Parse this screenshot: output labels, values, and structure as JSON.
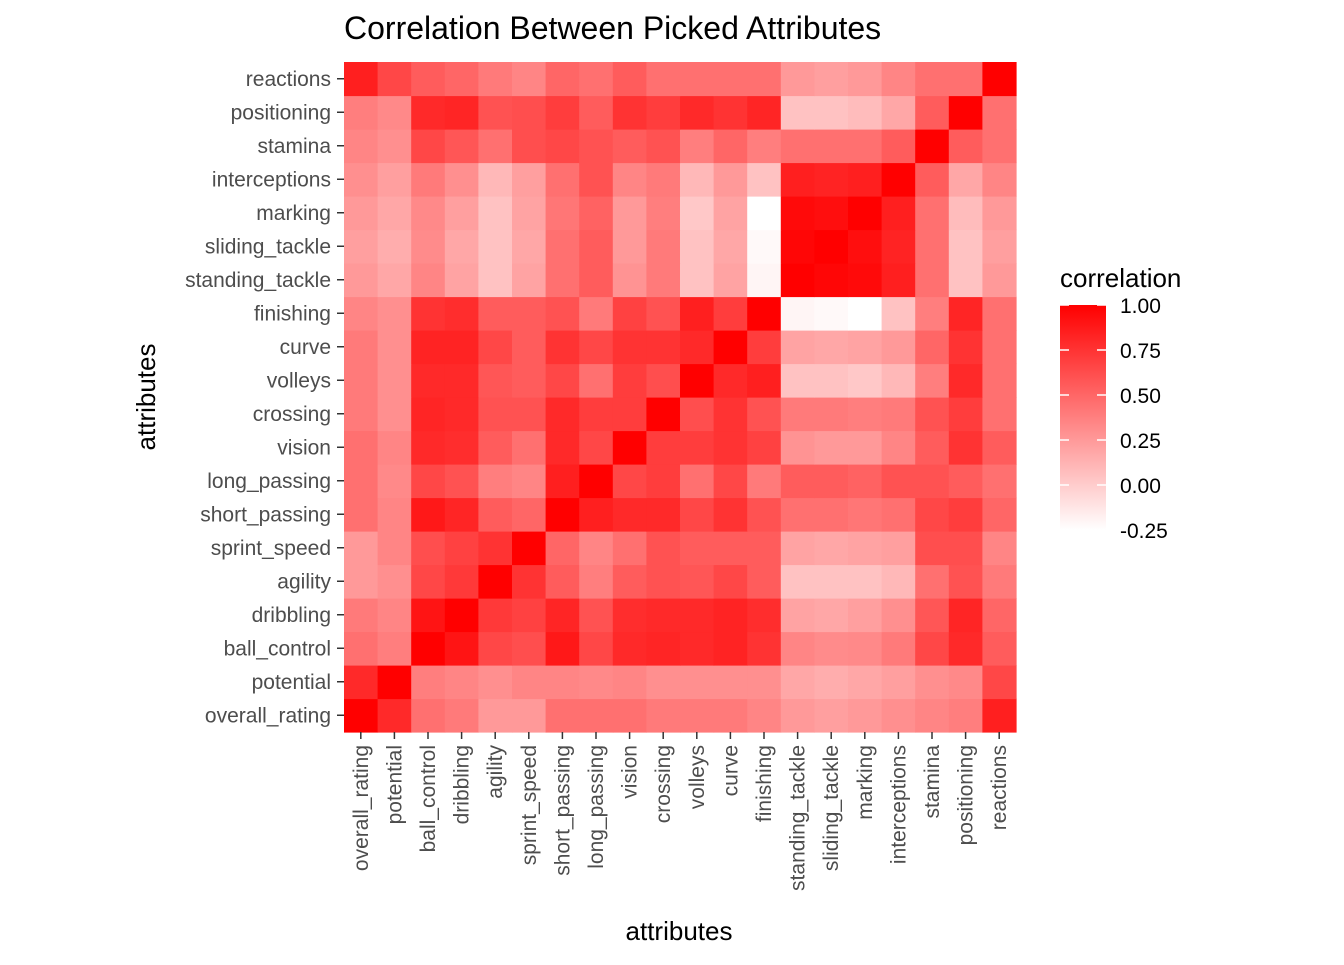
{
  "chart_data": {
    "type": "heatmap",
    "title": "Correlation Between Picked Attributes",
    "xlabel": "attributes",
    "ylabel": "attributes",
    "attributes": [
      "overall_rating",
      "potential",
      "ball_control",
      "dribbling",
      "agility",
      "sprint_speed",
      "short_passing",
      "long_passing",
      "vision",
      "crossing",
      "volleys",
      "curve",
      "finishing",
      "standing_tackle",
      "sliding_tackle",
      "marking",
      "interceptions",
      "stamina",
      "positioning",
      "reactions"
    ],
    "matrix": [
      [
        1.0,
        0.8,
        0.45,
        0.4,
        0.25,
        0.25,
        0.45,
        0.45,
        0.45,
        0.4,
        0.4,
        0.4,
        0.35,
        0.25,
        0.22,
        0.25,
        0.3,
        0.35,
        0.38,
        0.85
      ],
      [
        0.8,
        1.0,
        0.38,
        0.35,
        0.3,
        0.35,
        0.35,
        0.33,
        0.35,
        0.3,
        0.3,
        0.3,
        0.3,
        0.18,
        0.15,
        0.18,
        0.22,
        0.3,
        0.33,
        0.65
      ],
      [
        0.45,
        0.38,
        1.0,
        0.9,
        0.65,
        0.62,
        0.88,
        0.65,
        0.8,
        0.82,
        0.8,
        0.83,
        0.75,
        0.35,
        0.32,
        0.33,
        0.4,
        0.65,
        0.8,
        0.55
      ],
      [
        0.4,
        0.35,
        0.9,
        1.0,
        0.72,
        0.68,
        0.82,
        0.6,
        0.78,
        0.8,
        0.8,
        0.83,
        0.78,
        0.2,
        0.18,
        0.22,
        0.3,
        0.58,
        0.82,
        0.5
      ],
      [
        0.25,
        0.3,
        0.65,
        0.72,
        1.0,
        0.75,
        0.55,
        0.38,
        0.55,
        0.6,
        0.58,
        0.65,
        0.55,
        0.05,
        0.05,
        0.05,
        0.1,
        0.45,
        0.6,
        0.4
      ],
      [
        0.25,
        0.35,
        0.62,
        0.68,
        0.75,
        1.0,
        0.5,
        0.35,
        0.45,
        0.6,
        0.55,
        0.55,
        0.55,
        0.2,
        0.18,
        0.2,
        0.22,
        0.62,
        0.62,
        0.35
      ],
      [
        0.45,
        0.35,
        0.88,
        0.82,
        0.55,
        0.5,
        1.0,
        0.85,
        0.8,
        0.8,
        0.65,
        0.75,
        0.6,
        0.45,
        0.45,
        0.42,
        0.45,
        0.65,
        0.7,
        0.5
      ],
      [
        0.45,
        0.33,
        0.65,
        0.6,
        0.38,
        0.35,
        0.85,
        1.0,
        0.65,
        0.7,
        0.45,
        0.65,
        0.4,
        0.55,
        0.55,
        0.52,
        0.6,
        0.6,
        0.55,
        0.45
      ],
      [
        0.45,
        0.35,
        0.8,
        0.78,
        0.55,
        0.45,
        0.8,
        0.65,
        1.0,
        0.7,
        0.7,
        0.75,
        0.68,
        0.28,
        0.25,
        0.25,
        0.35,
        0.55,
        0.75,
        0.55
      ],
      [
        0.4,
        0.3,
        0.82,
        0.8,
        0.6,
        0.6,
        0.8,
        0.7,
        0.7,
        1.0,
        0.62,
        0.75,
        0.6,
        0.4,
        0.4,
        0.38,
        0.4,
        0.6,
        0.7,
        0.45
      ],
      [
        0.4,
        0.3,
        0.8,
        0.8,
        0.58,
        0.55,
        0.65,
        0.45,
        0.7,
        0.62,
        1.0,
        0.8,
        0.85,
        0.05,
        0.05,
        0.02,
        0.1,
        0.38,
        0.8,
        0.45
      ],
      [
        0.4,
        0.3,
        0.83,
        0.83,
        0.65,
        0.55,
        0.75,
        0.65,
        0.75,
        0.75,
        0.8,
        1.0,
        0.7,
        0.2,
        0.18,
        0.2,
        0.25,
        0.5,
        0.75,
        0.45
      ],
      [
        0.35,
        0.3,
        0.75,
        0.78,
        0.55,
        0.55,
        0.6,
        0.4,
        0.68,
        0.6,
        0.85,
        0.7,
        1.0,
        -0.2,
        -0.22,
        -0.25,
        0.05,
        0.38,
        0.82,
        0.45
      ],
      [
        0.25,
        0.18,
        0.35,
        0.2,
        0.05,
        0.2,
        0.45,
        0.55,
        0.28,
        0.4,
        0.05,
        0.2,
        -0.2,
        1.0,
        0.97,
        0.95,
        0.85,
        0.45,
        0.05,
        0.25
      ],
      [
        0.22,
        0.15,
        0.32,
        0.18,
        0.05,
        0.18,
        0.45,
        0.55,
        0.25,
        0.4,
        0.05,
        0.18,
        -0.22,
        0.97,
        1.0,
        0.93,
        0.83,
        0.45,
        0.05,
        0.22
      ],
      [
        0.25,
        0.18,
        0.33,
        0.22,
        0.05,
        0.2,
        0.42,
        0.52,
        0.25,
        0.38,
        0.02,
        0.2,
        -0.25,
        0.95,
        0.93,
        1.0,
        0.85,
        0.45,
        0.08,
        0.25
      ],
      [
        0.3,
        0.22,
        0.4,
        0.3,
        0.1,
        0.22,
        0.45,
        0.6,
        0.35,
        0.4,
        0.1,
        0.25,
        0.05,
        0.85,
        0.83,
        0.85,
        1.0,
        0.55,
        0.18,
        0.35
      ],
      [
        0.35,
        0.3,
        0.65,
        0.58,
        0.45,
        0.62,
        0.65,
        0.6,
        0.55,
        0.6,
        0.38,
        0.5,
        0.38,
        0.45,
        0.45,
        0.45,
        0.55,
        1.0,
        0.55,
        0.45
      ],
      [
        0.38,
        0.33,
        0.8,
        0.82,
        0.6,
        0.62,
        0.7,
        0.55,
        0.75,
        0.7,
        0.8,
        0.75,
        0.82,
        0.05,
        0.05,
        0.08,
        0.18,
        0.55,
        1.0,
        0.45
      ],
      [
        0.85,
        0.65,
        0.55,
        0.5,
        0.4,
        0.35,
        0.5,
        0.45,
        0.55,
        0.45,
        0.45,
        0.45,
        0.45,
        0.25,
        0.22,
        0.25,
        0.35,
        0.45,
        0.45,
        1.0
      ]
    ],
    "legend": {
      "title": "correlation",
      "ticks": [
        "1.00",
        "0.75",
        "0.50",
        "0.25",
        "0.00",
        "-0.25"
      ],
      "tick_values": [
        1.0,
        0.75,
        0.5,
        0.25,
        0.0,
        -0.25
      ],
      "position": "right"
    },
    "color_range": [
      -0.25,
      1.0
    ],
    "colors": {
      "low": "#ffffff",
      "high": "#ff0000",
      "panel": "#ebebeb",
      "text": "#4d4d4d",
      "title": "#000000"
    },
    "grid": true
  }
}
